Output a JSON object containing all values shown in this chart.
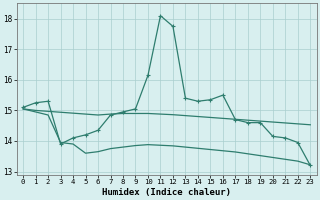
{
  "xlabel": "Humidex (Indice chaleur)",
  "x": [
    0,
    1,
    2,
    3,
    4,
    5,
    6,
    7,
    8,
    9,
    10,
    11,
    12,
    13,
    14,
    15,
    16,
    17,
    18,
    19,
    20,
    21,
    22,
    23
  ],
  "line_top": [
    15.1,
    15.25,
    15.3,
    13.9,
    14.1,
    14.2,
    14.35,
    14.85,
    14.95,
    15.05,
    16.15,
    18.1,
    17.75,
    15.4,
    15.3,
    15.35,
    15.5,
    14.7,
    14.6,
    14.6,
    14.15,
    14.1,
    13.95,
    13.2
  ],
  "line_mid": [
    15.05,
    15.0,
    14.97,
    14.94,
    14.91,
    14.88,
    14.85,
    14.88,
    14.9,
    14.9,
    14.9,
    14.88,
    14.86,
    14.83,
    14.8,
    14.77,
    14.74,
    14.71,
    14.68,
    14.65,
    14.62,
    14.59,
    14.56,
    14.53
  ],
  "line_bot": [
    15.05,
    14.95,
    14.85,
    13.95,
    13.9,
    13.6,
    13.65,
    13.75,
    13.8,
    13.85,
    13.88,
    13.86,
    13.84,
    13.8,
    13.76,
    13.72,
    13.68,
    13.64,
    13.58,
    13.52,
    13.46,
    13.4,
    13.34,
    13.22
  ],
  "line_color": "#2e7d6e",
  "bg_color": "#d8efef",
  "grid_color": "#aacfcf",
  "ylim": [
    12.9,
    18.5
  ],
  "xlim": [
    -0.5,
    23.5
  ],
  "yticks": [
    13,
    14,
    15,
    16,
    17,
    18
  ],
  "xticks": [
    0,
    1,
    2,
    3,
    4,
    5,
    6,
    7,
    8,
    9,
    10,
    11,
    12,
    13,
    14,
    15,
    16,
    17,
    18,
    19,
    20,
    21,
    22,
    23
  ]
}
